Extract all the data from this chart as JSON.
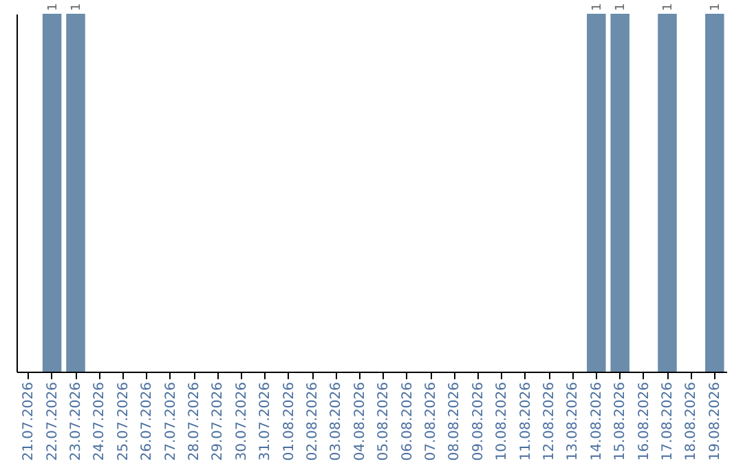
{
  "chart_data": {
    "type": "bar",
    "categories": [
      "21.07.2026",
      "22.07.2026",
      "23.07.2026",
      "24.07.2026",
      "25.07.2026",
      "26.07.2026",
      "27.07.2026",
      "28.07.2026",
      "29.07.2026",
      "30.07.2026",
      "31.07.2026",
      "01.08.2026",
      "02.08.2026",
      "03.08.2026",
      "04.08.2026",
      "05.08.2026",
      "06.08.2026",
      "07.08.2026",
      "08.08.2026",
      "09.08.2026",
      "10.08.2026",
      "11.08.2026",
      "12.08.2026",
      "13.08.2026",
      "14.08.2026",
      "15.08.2026",
      "16.08.2026",
      "17.08.2026",
      "18.08.2026",
      "19.08.2026"
    ],
    "values": [
      0,
      1,
      1,
      0,
      0,
      0,
      0,
      0,
      0,
      0,
      0,
      0,
      0,
      0,
      0,
      0,
      0,
      0,
      0,
      0,
      0,
      0,
      0,
      0,
      1,
      1,
      0,
      1,
      0,
      1
    ],
    "value_labels": [
      null,
      "1",
      "1",
      null,
      null,
      null,
      null,
      null,
      null,
      null,
      null,
      null,
      null,
      null,
      null,
      null,
      null,
      null,
      null,
      null,
      null,
      null,
      null,
      null,
      "1",
      "1",
      null,
      "1",
      null,
      "1"
    ],
    "color": "#6b8cab",
    "ylim": [
      0,
      1
    ],
    "tick_labels": "x",
    "grid": false
  }
}
